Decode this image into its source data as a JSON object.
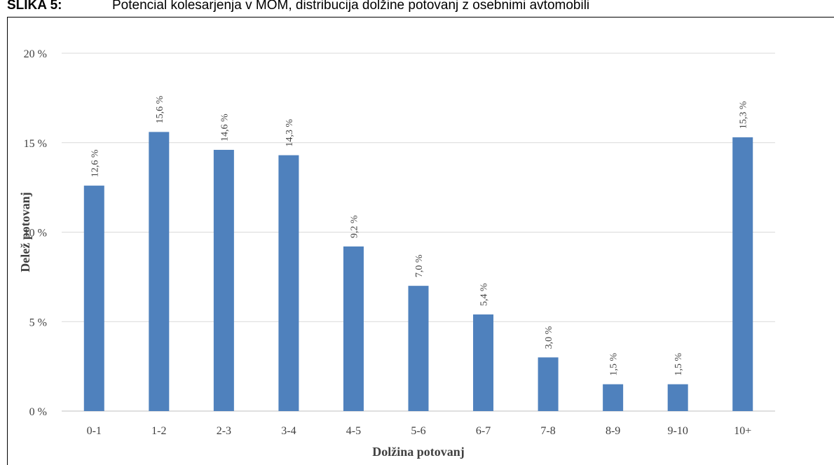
{
  "caption": {
    "label": "SLIKA 5:",
    "text": "Potencial kolesarjenja v MOM, distribucija dolžine potovanj z osebnimi avtomobili"
  },
  "chart_data": {
    "type": "bar",
    "categories": [
      "0-1",
      "1-2",
      "2-3",
      "3-4",
      "4-5",
      "5-6",
      "6-7",
      "7-8",
      "8-9",
      "9-10",
      "10+"
    ],
    "values": [
      12.6,
      15.6,
      14.6,
      14.3,
      9.2,
      7.0,
      5.4,
      3.0,
      1.5,
      1.5,
      15.3
    ],
    "data_labels": [
      "12,6 %",
      "15,6 %",
      "14,6 %",
      "14,3 %",
      "9,2 %",
      "7,0 %",
      "5,4 %",
      "3,0 %",
      "1,5 %",
      "1,5 %",
      "15,3 %"
    ],
    "yticks": [
      0,
      5,
      10,
      15,
      20
    ],
    "ytick_labels": [
      "0 %",
      "5 %",
      "10 %",
      "15 %",
      "20 %"
    ],
    "ylim": [
      0,
      20
    ],
    "xlabel": "Dolžina potovanj",
    "ylabel": "Delež potovanj",
    "title": "",
    "grid": true,
    "legend": "none",
    "bar_color": "#4f81bd",
    "grid_color": "#d9d9d9"
  }
}
